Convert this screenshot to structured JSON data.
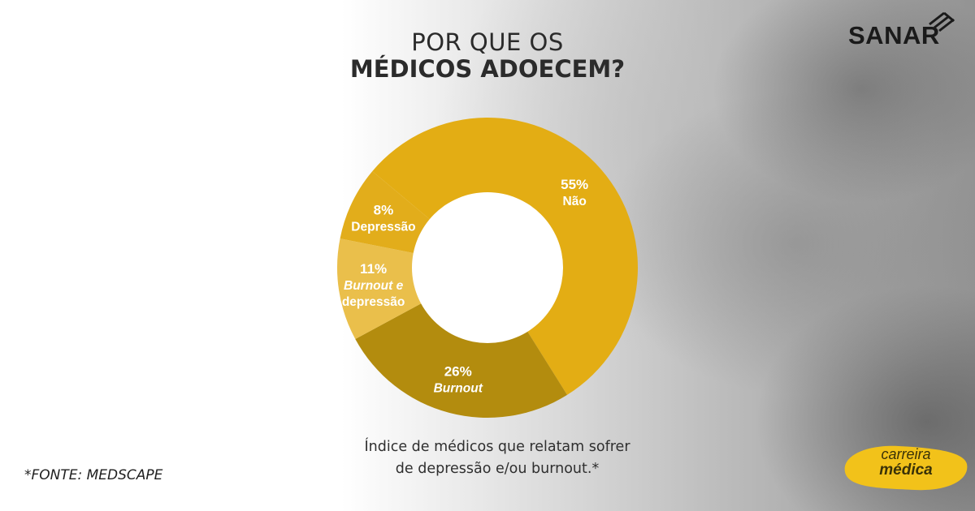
{
  "header": {
    "title_line1": "POR QUE OS",
    "title_line2": "MÉDICOS ADOECEM?"
  },
  "brand": {
    "name": "SANAR",
    "icon": "sanar-logo-icon"
  },
  "chart_data": {
    "type": "pie",
    "donut": true,
    "slices": [
      {
        "label": "Não",
        "value": 55,
        "value_label": "55%",
        "color": "#E3AD14",
        "italic": false
      },
      {
        "label": "Burnout",
        "value": 26,
        "value_label": "26%",
        "color": "#B38C0E",
        "italic": true
      },
      {
        "label_line1": "Burnout e",
        "label_line2": "depressão",
        "value": 11,
        "value_label": "11%",
        "color": "#EABF4B",
        "italic_line1": true
      },
      {
        "label": "Depressão",
        "value": 8,
        "value_label": "8%",
        "color": "#E2AD1B",
        "italic": false
      }
    ]
  },
  "caption": {
    "line1": "Índice de médicos que relatam sofrer",
    "line2": "de depressão e/ou burnout.*"
  },
  "source": "*FONTE: MEDSCAPE",
  "badge": {
    "line1": "carreira",
    "line2": "médica",
    "color": "#F2C21A"
  }
}
